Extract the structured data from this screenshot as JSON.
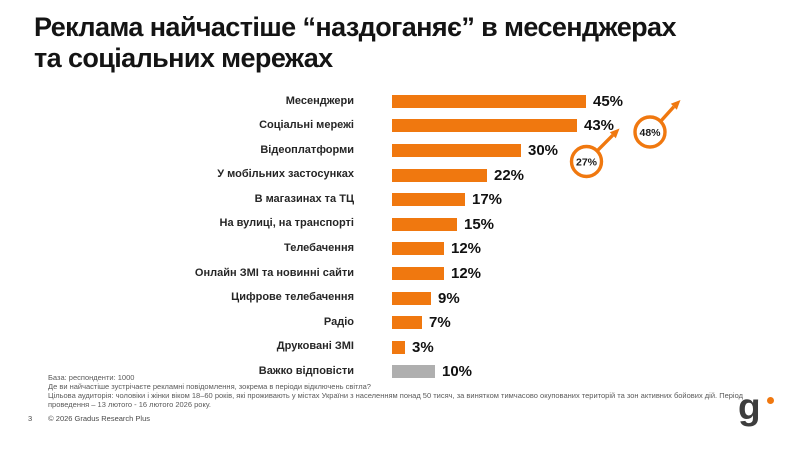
{
  "slide": {
    "title_line1": "Реклама найчастіше “наздоганяє” в месенджерах",
    "title_line2": "та соціальних мережах",
    "page_number": "3",
    "copyright": "© 2026 Gradus Research Plus",
    "logo_text": "g"
  },
  "footnotes": {
    "base": "База: респонденти: 1000",
    "question": "Де ви найчастіше зустрічаєте рекламні повідомлення, зокрема в періоди відключень світла?",
    "methodology": "Цільова аудиторія: чоловіки і жінки віком 18–60 років, які проживають у містах України з населенням понад 50 тисяч, за винятком тимчасово окупованих територій та зон активних бойових дій. Період проведення – 13 лютого - 16 лютого 2026 року."
  },
  "colors": {
    "bar_orange": "#F0780F",
    "bar_gray": "#AFAFAF",
    "annotation_orange": "#F0780F",
    "logo_dot_orange": "#F0780F"
  },
  "chart_data": {
    "type": "bar",
    "orientation": "horizontal",
    "categories": [
      "Месенджери",
      "Соціальні мережі",
      "Відеоплатформи",
      "У мобільних застосунках",
      "В магазинах та ТЦ",
      "На вулиці, на транспорті",
      "Телебачення",
      "Онлайн ЗМІ та новинні сайти",
      "Цифрове телебачення",
      "Радіо",
      "Друковані ЗМІ",
      "Важко відповісти"
    ],
    "values": [
      45,
      43,
      30,
      22,
      17,
      15,
      12,
      12,
      9,
      7,
      3,
      10
    ],
    "value_labels": [
      "45%",
      "43%",
      "30%",
      "22%",
      "17%",
      "15%",
      "12%",
      "12%",
      "9%",
      "7%",
      "3%",
      "10%"
    ],
    "bar_colors": [
      "#F0780F",
      "#F0780F",
      "#F0780F",
      "#F0780F",
      "#F0780F",
      "#F0780F",
      "#F0780F",
      "#F0780F",
      "#F0780F",
      "#F0780F",
      "#F0780F",
      "#AFAFAF"
    ],
    "xlim": [
      0,
      50
    ],
    "grid": false,
    "legend": false,
    "annotations": [
      {
        "label": "27%",
        "shape": "circle-with-up-right-arrow",
        "near_category": "Відеоплатформи"
      },
      {
        "label": "48%",
        "shape": "circle-with-up-right-arrow",
        "near_category": "Соціальні мережі"
      }
    ]
  }
}
